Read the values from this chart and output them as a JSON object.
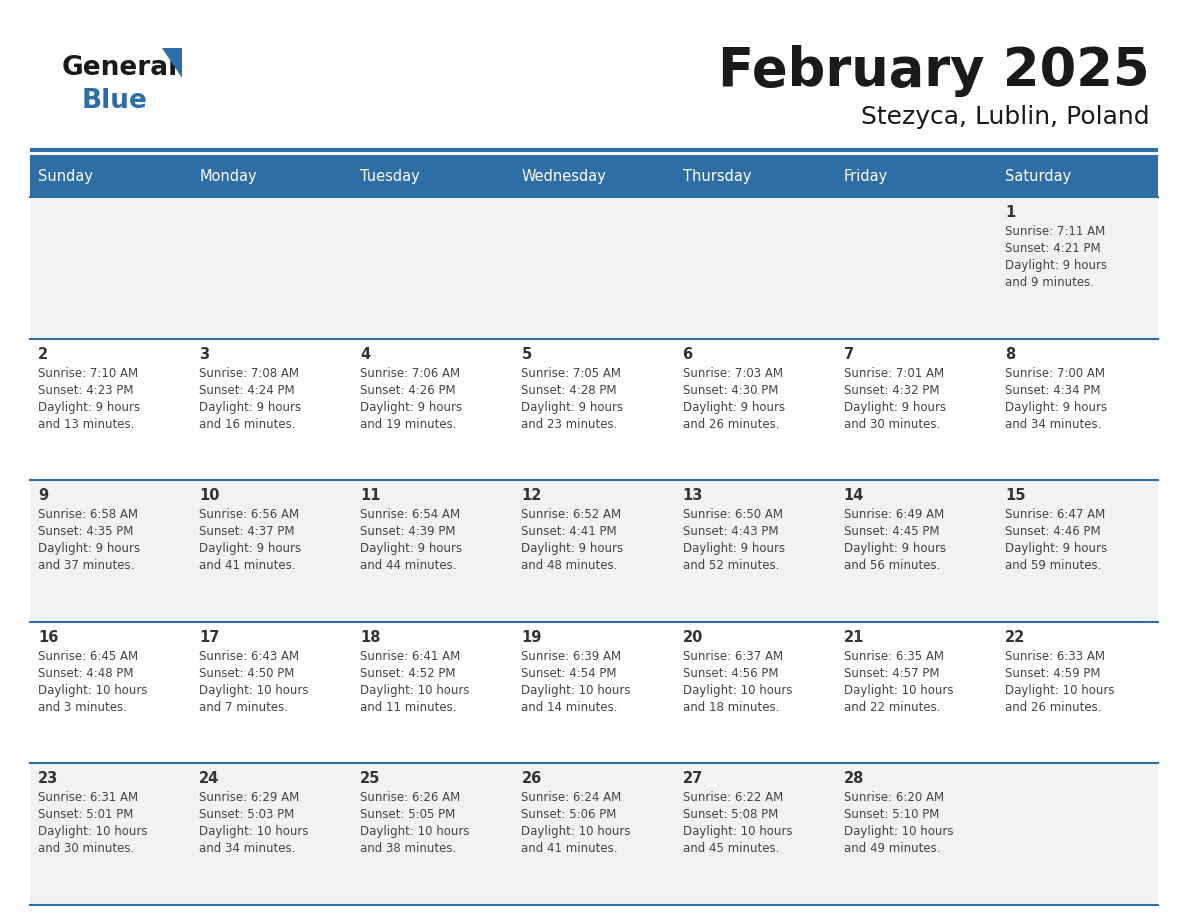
{
  "title": "February 2025",
  "subtitle": "Stezyca, Lublin, Poland",
  "header_bg": "#2E6EA6",
  "header_text_color": "#FFFFFF",
  "row_bg_alt": "#F2F2F2",
  "row_bg_norm": "#FFFFFF",
  "border_color": "#2E6EA6",
  "text_color": "#333333",
  "days_of_week": [
    "Sunday",
    "Monday",
    "Tuesday",
    "Wednesday",
    "Thursday",
    "Friday",
    "Saturday"
  ],
  "calendar_data": [
    [
      {
        "day": "",
        "lines": []
      },
      {
        "day": "",
        "lines": []
      },
      {
        "day": "",
        "lines": []
      },
      {
        "day": "",
        "lines": []
      },
      {
        "day": "",
        "lines": []
      },
      {
        "day": "",
        "lines": []
      },
      {
        "day": "1",
        "lines": [
          "Sunrise: 7:11 AM",
          "Sunset: 4:21 PM",
          "Daylight: 9 hours",
          "and 9 minutes."
        ]
      }
    ],
    [
      {
        "day": "2",
        "lines": [
          "Sunrise: 7:10 AM",
          "Sunset: 4:23 PM",
          "Daylight: 9 hours",
          "and 13 minutes."
        ]
      },
      {
        "day": "3",
        "lines": [
          "Sunrise: 7:08 AM",
          "Sunset: 4:24 PM",
          "Daylight: 9 hours",
          "and 16 minutes."
        ]
      },
      {
        "day": "4",
        "lines": [
          "Sunrise: 7:06 AM",
          "Sunset: 4:26 PM",
          "Daylight: 9 hours",
          "and 19 minutes."
        ]
      },
      {
        "day": "5",
        "lines": [
          "Sunrise: 7:05 AM",
          "Sunset: 4:28 PM",
          "Daylight: 9 hours",
          "and 23 minutes."
        ]
      },
      {
        "day": "6",
        "lines": [
          "Sunrise: 7:03 AM",
          "Sunset: 4:30 PM",
          "Daylight: 9 hours",
          "and 26 minutes."
        ]
      },
      {
        "day": "7",
        "lines": [
          "Sunrise: 7:01 AM",
          "Sunset: 4:32 PM",
          "Daylight: 9 hours",
          "and 30 minutes."
        ]
      },
      {
        "day": "8",
        "lines": [
          "Sunrise: 7:00 AM",
          "Sunset: 4:34 PM",
          "Daylight: 9 hours",
          "and 34 minutes."
        ]
      }
    ],
    [
      {
        "day": "9",
        "lines": [
          "Sunrise: 6:58 AM",
          "Sunset: 4:35 PM",
          "Daylight: 9 hours",
          "and 37 minutes."
        ]
      },
      {
        "day": "10",
        "lines": [
          "Sunrise: 6:56 AM",
          "Sunset: 4:37 PM",
          "Daylight: 9 hours",
          "and 41 minutes."
        ]
      },
      {
        "day": "11",
        "lines": [
          "Sunrise: 6:54 AM",
          "Sunset: 4:39 PM",
          "Daylight: 9 hours",
          "and 44 minutes."
        ]
      },
      {
        "day": "12",
        "lines": [
          "Sunrise: 6:52 AM",
          "Sunset: 4:41 PM",
          "Daylight: 9 hours",
          "and 48 minutes."
        ]
      },
      {
        "day": "13",
        "lines": [
          "Sunrise: 6:50 AM",
          "Sunset: 4:43 PM",
          "Daylight: 9 hours",
          "and 52 minutes."
        ]
      },
      {
        "day": "14",
        "lines": [
          "Sunrise: 6:49 AM",
          "Sunset: 4:45 PM",
          "Daylight: 9 hours",
          "and 56 minutes."
        ]
      },
      {
        "day": "15",
        "lines": [
          "Sunrise: 6:47 AM",
          "Sunset: 4:46 PM",
          "Daylight: 9 hours",
          "and 59 minutes."
        ]
      }
    ],
    [
      {
        "day": "16",
        "lines": [
          "Sunrise: 6:45 AM",
          "Sunset: 4:48 PM",
          "Daylight: 10 hours",
          "and 3 minutes."
        ]
      },
      {
        "day": "17",
        "lines": [
          "Sunrise: 6:43 AM",
          "Sunset: 4:50 PM",
          "Daylight: 10 hours",
          "and 7 minutes."
        ]
      },
      {
        "day": "18",
        "lines": [
          "Sunrise: 6:41 AM",
          "Sunset: 4:52 PM",
          "Daylight: 10 hours",
          "and 11 minutes."
        ]
      },
      {
        "day": "19",
        "lines": [
          "Sunrise: 6:39 AM",
          "Sunset: 4:54 PM",
          "Daylight: 10 hours",
          "and 14 minutes."
        ]
      },
      {
        "day": "20",
        "lines": [
          "Sunrise: 6:37 AM",
          "Sunset: 4:56 PM",
          "Daylight: 10 hours",
          "and 18 minutes."
        ]
      },
      {
        "day": "21",
        "lines": [
          "Sunrise: 6:35 AM",
          "Sunset: 4:57 PM",
          "Daylight: 10 hours",
          "and 22 minutes."
        ]
      },
      {
        "day": "22",
        "lines": [
          "Sunrise: 6:33 AM",
          "Sunset: 4:59 PM",
          "Daylight: 10 hours",
          "and 26 minutes."
        ]
      }
    ],
    [
      {
        "day": "23",
        "lines": [
          "Sunrise: 6:31 AM",
          "Sunset: 5:01 PM",
          "Daylight: 10 hours",
          "and 30 minutes."
        ]
      },
      {
        "day": "24",
        "lines": [
          "Sunrise: 6:29 AM",
          "Sunset: 5:03 PM",
          "Daylight: 10 hours",
          "and 34 minutes."
        ]
      },
      {
        "day": "25",
        "lines": [
          "Sunrise: 6:26 AM",
          "Sunset: 5:05 PM",
          "Daylight: 10 hours",
          "and 38 minutes."
        ]
      },
      {
        "day": "26",
        "lines": [
          "Sunrise: 6:24 AM",
          "Sunset: 5:06 PM",
          "Daylight: 10 hours",
          "and 41 minutes."
        ]
      },
      {
        "day": "27",
        "lines": [
          "Sunrise: 6:22 AM",
          "Sunset: 5:08 PM",
          "Daylight: 10 hours",
          "and 45 minutes."
        ]
      },
      {
        "day": "28",
        "lines": [
          "Sunrise: 6:20 AM",
          "Sunset: 5:10 PM",
          "Daylight: 10 hours",
          "and 49 minutes."
        ]
      },
      {
        "day": "",
        "lines": []
      }
    ]
  ]
}
